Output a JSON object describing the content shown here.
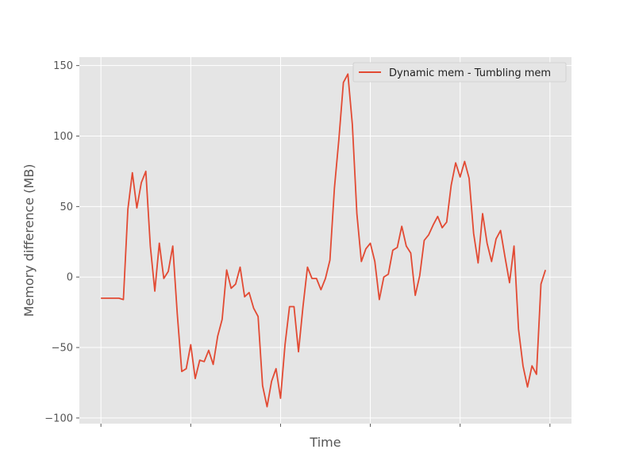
{
  "chart_data": {
    "type": "line",
    "title": "",
    "xlabel": "Time",
    "ylabel": "Memory difference (MB)",
    "ylim": [
      -104,
      156
    ],
    "yticks": [
      -100,
      -50,
      0,
      50,
      100,
      150
    ],
    "ytick_labels": [
      "−100",
      "−50",
      "0",
      "50",
      "100",
      "150"
    ],
    "xticks": [
      0,
      20,
      40,
      60,
      80,
      100
    ],
    "xtick_labels": [
      "",
      "",
      "",
      "",
      "",
      ""
    ],
    "xlim": [
      -4.8,
      104.8
    ],
    "grid": true,
    "legend_position": "top-right",
    "colors": {
      "series": "#E24A33",
      "panel": "#E5E5E5",
      "grid": "#FFFFFF"
    },
    "series": [
      {
        "name": "Dynamic mem - Tumbling mem",
        "x": [
          0,
          1,
          2,
          3,
          4,
          5,
          6,
          7,
          8,
          9,
          10,
          11,
          12,
          13,
          14,
          15,
          16,
          17,
          18,
          19,
          20,
          21,
          22,
          23,
          24,
          25,
          26,
          27,
          28,
          29,
          30,
          31,
          32,
          33,
          34,
          35,
          36,
          37,
          38,
          39,
          40,
          41,
          42,
          43,
          44,
          45,
          46,
          47,
          48,
          49,
          50,
          51,
          52,
          53,
          54,
          55,
          56,
          57,
          58,
          59,
          60,
          61,
          62,
          63,
          64,
          65,
          66,
          67,
          68,
          69,
          70,
          71,
          72,
          73,
          74,
          75,
          76,
          77,
          78,
          79,
          80,
          81,
          82,
          83,
          84,
          85,
          86,
          87,
          88,
          89,
          90,
          91,
          92,
          93,
          94,
          95,
          96,
          97,
          98,
          99
        ],
        "y": [
          -15,
          -15,
          -15,
          -15,
          -15,
          -16,
          48,
          74,
          49,
          67,
          75,
          22,
          -10,
          24,
          -1,
          4,
          22,
          -26,
          -67,
          -65,
          -48,
          -72,
          -59,
          -60,
          -52,
          -62,
          -42,
          -30,
          5,
          -8,
          -5,
          7,
          -14,
          -11,
          -22,
          -28,
          -77,
          -92,
          -74,
          -65,
          -86,
          -48,
          -21,
          -21,
          -53,
          -21,
          7,
          -1,
          -1,
          -9,
          -1,
          12,
          63,
          98,
          138,
          144,
          108,
          45,
          11,
          20,
          24,
          11,
          -16,
          0,
          2,
          19,
          21,
          36,
          22,
          17,
          -13,
          1,
          26,
          30,
          37,
          43,
          35,
          39,
          65,
          81,
          71,
          82,
          70,
          31,
          10,
          45,
          24,
          11,
          27,
          33,
          14,
          -4,
          22,
          -37,
          -63,
          -78,
          -63,
          -69,
          -5,
          5
        ]
      }
    ]
  }
}
